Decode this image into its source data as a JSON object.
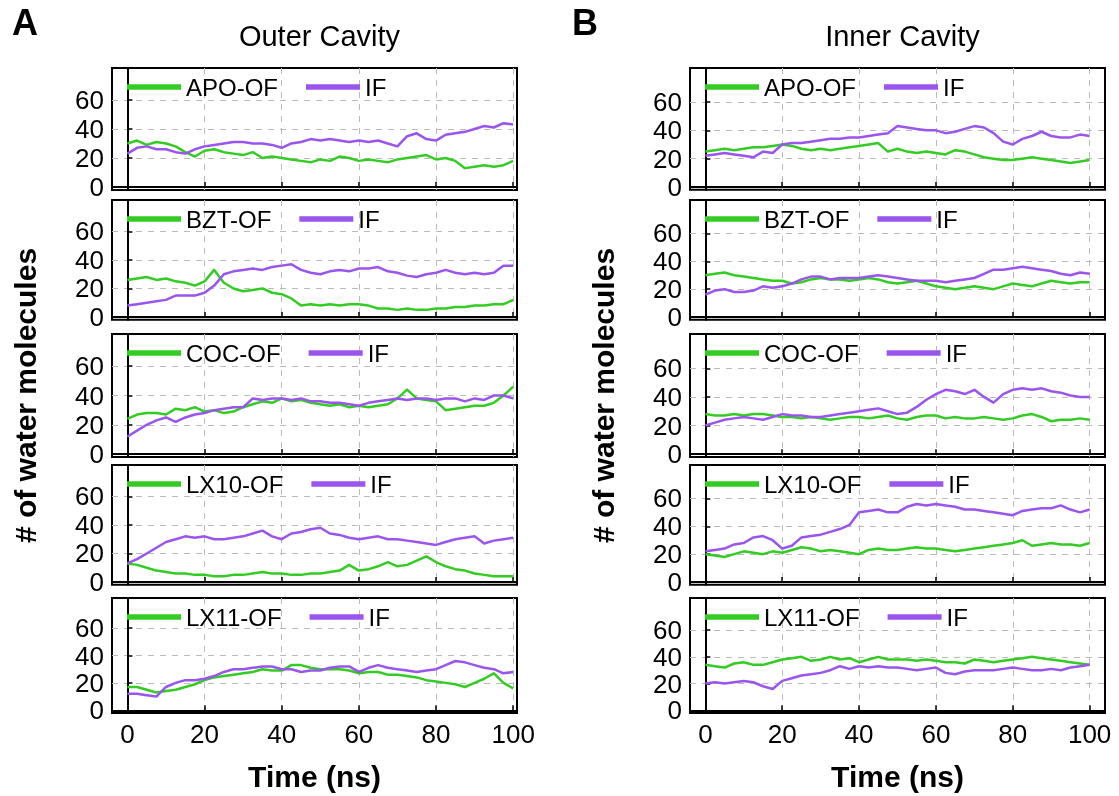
{
  "chart_data": [
    {
      "type": "line",
      "title": "Outer Cavity",
      "annotations": [
        "A"
      ],
      "xlim": [
        -4,
        101
      ],
      "ylim": [
        -2,
        82
      ],
      "xticks": [
        0,
        20,
        40,
        60,
        80,
        100
      ],
      "yticks": [
        0,
        20,
        40,
        60
      ],
      "tick_labels": "y",
      "grid": true,
      "legend": "top left",
      "marker": "none",
      "line_style": "solid",
      "x": [
        0,
        2.5,
        5,
        7.5,
        10,
        12.5,
        15,
        17.5,
        20,
        22.5,
        25,
        27.5,
        30,
        32.5,
        35,
        37.5,
        40,
        42.5,
        45,
        47.5,
        50,
        52.5,
        55,
        57.5,
        60,
        62.5,
        65,
        67.5,
        70,
        72.5,
        75,
        77.5,
        80,
        82.5,
        85,
        87.5,
        90,
        92.5,
        95,
        97.5,
        100
      ],
      "series": [
        {
          "name": "APO-OF",
          "color": "#33cc22",
          "values": [
            30,
            32,
            29,
            31,
            30,
            28,
            24,
            21,
            25,
            26,
            24,
            23,
            22,
            24,
            20,
            21,
            20,
            19,
            18,
            17,
            19,
            18,
            21,
            20,
            18,
            19,
            18,
            17,
            19,
            20,
            21,
            22,
            19,
            20,
            18,
            13,
            14,
            15,
            14,
            15,
            18
          ]
        },
        {
          "name": "IF",
          "color": "#9955ee",
          "values": [
            23,
            27,
            28,
            26,
            26,
            24,
            23,
            26,
            28,
            29,
            30,
            31,
            31,
            30,
            30,
            29,
            27,
            30,
            31,
            33,
            32,
            33,
            32,
            31,
            32,
            31,
            32,
            30,
            28,
            35,
            37,
            33,
            32,
            36,
            37,
            38,
            40,
            42,
            41,
            44,
            43
          ]
        }
      ]
    },
    {
      "type": "line",
      "xlim": [
        -4,
        101
      ],
      "ylim": [
        -2,
        82
      ],
      "xticks": [
        0,
        20,
        40,
        60,
        80,
        100
      ],
      "yticks": [
        0,
        20,
        40,
        60
      ],
      "tick_labels": "y",
      "grid": true,
      "legend": "top left",
      "marker": "none",
      "line_style": "solid",
      "x": [
        0,
        2.5,
        5,
        7.5,
        10,
        12.5,
        15,
        17.5,
        20,
        22.5,
        25,
        27.5,
        30,
        32.5,
        35,
        37.5,
        40,
        42.5,
        45,
        47.5,
        50,
        52.5,
        55,
        57.5,
        60,
        62.5,
        65,
        67.5,
        70,
        72.5,
        75,
        77.5,
        80,
        82.5,
        85,
        87.5,
        90,
        92.5,
        95,
        97.5,
        100
      ],
      "series": [
        {
          "name": "BZT-OF",
          "color": "#33cc22",
          "values": [
            26,
            27,
            28,
            26,
            27,
            25,
            24,
            22,
            25,
            33,
            24,
            20,
            18,
            19,
            20,
            17,
            16,
            13,
            8,
            9,
            8,
            9,
            8,
            9,
            9,
            8,
            6,
            6,
            5,
            6,
            5,
            5,
            6,
            6,
            7,
            7,
            8,
            8,
            9,
            9,
            12
          ]
        },
        {
          "name": "IF",
          "color": "#9955ee",
          "values": [
            8,
            9,
            10,
            11,
            12,
            15,
            15,
            15,
            17,
            22,
            30,
            32,
            33,
            34,
            33,
            35,
            36,
            37,
            33,
            31,
            30,
            32,
            33,
            32,
            34,
            34,
            35,
            32,
            31,
            29,
            28,
            30,
            31,
            33,
            31,
            30,
            31,
            30,
            31,
            36,
            36
          ]
        }
      ]
    },
    {
      "type": "line",
      "ylabel": "# of water molecules",
      "xlim": [
        -4,
        101
      ],
      "ylim": [
        -2,
        82
      ],
      "xticks": [
        0,
        20,
        40,
        60,
        80,
        100
      ],
      "yticks": [
        0,
        20,
        40,
        60
      ],
      "tick_labels": "y",
      "grid": true,
      "legend": "top left",
      "marker": "none",
      "line_style": "solid",
      "x": [
        0,
        2.5,
        5,
        7.5,
        10,
        12.5,
        15,
        17.5,
        20,
        22.5,
        25,
        27.5,
        30,
        32.5,
        35,
        37.5,
        40,
        42.5,
        45,
        47.5,
        50,
        52.5,
        55,
        57.5,
        60,
        62.5,
        65,
        67.5,
        70,
        72.5,
        75,
        77.5,
        80,
        82.5,
        85,
        87.5,
        90,
        92.5,
        95,
        97.5,
        100
      ],
      "series": [
        {
          "name": "COC-OF",
          "color": "#33cc22",
          "values": [
            24,
            27,
            28,
            28,
            27,
            31,
            30,
            32,
            29,
            30,
            28,
            29,
            32,
            34,
            36,
            35,
            38,
            36,
            37,
            35,
            34,
            33,
            34,
            32,
            33,
            32,
            33,
            34,
            38,
            44,
            38,
            37,
            36,
            30,
            31,
            32,
            33,
            33,
            35,
            40,
            46
          ]
        },
        {
          "name": "IF",
          "color": "#9955ee",
          "values": [
            12,
            16,
            20,
            23,
            25,
            22,
            25,
            27,
            28,
            30,
            31,
            32,
            32,
            38,
            37,
            38,
            38,
            37,
            38,
            36,
            36,
            35,
            35,
            34,
            33,
            35,
            36,
            37,
            38,
            37,
            38,
            38,
            37,
            38,
            38,
            36,
            38,
            37,
            40,
            40,
            38
          ]
        }
      ]
    },
    {
      "type": "line",
      "xlim": [
        -4,
        101
      ],
      "ylim": [
        -2,
        82
      ],
      "xticks": [
        0,
        20,
        40,
        60,
        80,
        100
      ],
      "yticks": [
        0,
        20,
        40,
        60
      ],
      "tick_labels": "y",
      "grid": true,
      "legend": "top left",
      "marker": "none",
      "line_style": "solid",
      "x": [
        0,
        2.5,
        5,
        7.5,
        10,
        12.5,
        15,
        17.5,
        20,
        22.5,
        25,
        27.5,
        30,
        32.5,
        35,
        37.5,
        40,
        42.5,
        45,
        47.5,
        50,
        52.5,
        55,
        57.5,
        60,
        62.5,
        65,
        67.5,
        70,
        72.5,
        75,
        77.5,
        80,
        82.5,
        85,
        87.5,
        90,
        92.5,
        95,
        97.5,
        100
      ],
      "series": [
        {
          "name": "LX10-OF",
          "color": "#33cc22",
          "values": [
            13,
            12,
            10,
            8,
            7,
            6,
            6,
            5,
            5,
            4,
            4,
            5,
            5,
            6,
            7,
            6,
            6,
            5,
            5,
            6,
            6,
            7,
            8,
            12,
            8,
            9,
            11,
            14,
            11,
            12,
            15,
            18,
            14,
            11,
            9,
            8,
            6,
            5,
            4,
            4,
            4
          ]
        },
        {
          "name": "IF",
          "color": "#9955ee",
          "values": [
            13,
            16,
            20,
            24,
            28,
            30,
            32,
            31,
            32,
            30,
            30,
            31,
            32,
            34,
            36,
            32,
            30,
            34,
            35,
            37,
            38,
            34,
            33,
            31,
            30,
            31,
            32,
            30,
            30,
            29,
            28,
            27,
            26,
            28,
            30,
            31,
            32,
            27,
            29,
            30,
            31
          ]
        }
      ]
    },
    {
      "type": "line",
      "xlabel": "Time (ns)",
      "xlim": [
        -4,
        101
      ],
      "ylim": [
        -2,
        82
      ],
      "xticks": [
        0,
        20,
        40,
        60,
        80,
        100
      ],
      "yticks": [
        0,
        20,
        40,
        60
      ],
      "grid": true,
      "legend": "top left",
      "marker": "none",
      "line_style": "solid",
      "x": [
        0,
        2.5,
        5,
        7.5,
        10,
        12.5,
        15,
        17.5,
        20,
        22.5,
        25,
        27.5,
        30,
        32.5,
        35,
        37.5,
        40,
        42.5,
        45,
        47.5,
        50,
        52.5,
        55,
        57.5,
        60,
        62.5,
        65,
        67.5,
        70,
        72.5,
        75,
        77.5,
        80,
        82.5,
        85,
        87.5,
        90,
        92.5,
        95,
        97.5,
        100
      ],
      "series": [
        {
          "name": "LX11-OF",
          "color": "#33cc22",
          "values": [
            17,
            17,
            15,
            13,
            14,
            15,
            17,
            19,
            22,
            24,
            25,
            26,
            27,
            28,
            30,
            29,
            29,
            33,
            33,
            31,
            30,
            30,
            30,
            29,
            27,
            28,
            28,
            26,
            26,
            25,
            24,
            22,
            21,
            20,
            19,
            17,
            20,
            23,
            27,
            20,
            16
          ]
        },
        {
          "name": "IF",
          "color": "#9955ee",
          "values": [
            12,
            12,
            11,
            10,
            17,
            20,
            22,
            22,
            23,
            25,
            28,
            30,
            30,
            31,
            32,
            32,
            30,
            30,
            28,
            29,
            29,
            31,
            32,
            32,
            28,
            31,
            33,
            31,
            30,
            29,
            28,
            29,
            30,
            33,
            36,
            35,
            33,
            31,
            30,
            27,
            28
          ]
        }
      ]
    },
    {
      "type": "line",
      "title": "Inner Cavity",
      "annotations": [
        "B"
      ],
      "xlim": [
        -4,
        104
      ],
      "ylim": [
        -2,
        84
      ],
      "xticks": [
        0,
        20,
        40,
        60,
        80,
        100
      ],
      "yticks": [
        0,
        20,
        40,
        60
      ],
      "tick_labels": "y",
      "grid": true,
      "legend": "top left",
      "marker": "none",
      "line_style": "solid",
      "x": [
        0,
        2.5,
        5,
        7.5,
        10,
        12.5,
        15,
        17.5,
        20,
        22.5,
        25,
        27.5,
        30,
        32.5,
        35,
        37.5,
        40,
        42.5,
        45,
        47.5,
        50,
        52.5,
        55,
        57.5,
        60,
        62.5,
        65,
        67.5,
        70,
        72.5,
        75,
        77.5,
        80,
        82.5,
        85,
        87.5,
        90,
        92.5,
        95,
        97.5,
        100
      ],
      "series": [
        {
          "name": "APO-OF",
          "color": "#33cc22",
          "values": [
            25,
            26,
            27,
            26,
            27,
            28,
            28,
            29,
            30,
            29,
            27,
            26,
            27,
            26,
            27,
            28,
            29,
            30,
            31,
            25,
            27,
            25,
            24,
            25,
            24,
            23,
            26,
            25,
            23,
            21,
            20,
            19,
            19,
            20,
            21,
            20,
            19,
            18,
            17,
            18,
            19
          ]
        },
        {
          "name": "IF",
          "color": "#9955ee",
          "values": [
            22,
            23,
            24,
            23,
            22,
            21,
            25,
            24,
            30,
            31,
            31,
            32,
            33,
            34,
            34,
            35,
            35,
            36,
            37,
            38,
            43,
            42,
            41,
            40,
            40,
            38,
            39,
            41,
            43,
            42,
            38,
            32,
            30,
            34,
            36,
            39,
            36,
            35,
            35,
            37,
            36
          ]
        }
      ]
    },
    {
      "type": "line",
      "xlim": [
        -4,
        104
      ],
      "ylim": [
        -2,
        84
      ],
      "xticks": [
        0,
        20,
        40,
        60,
        80,
        100
      ],
      "yticks": [
        0,
        20,
        40,
        60
      ],
      "tick_labels": "y",
      "grid": true,
      "legend": "top left",
      "marker": "none",
      "line_style": "solid",
      "x": [
        0,
        2.5,
        5,
        7.5,
        10,
        12.5,
        15,
        17.5,
        20,
        22.5,
        25,
        27.5,
        30,
        32.5,
        35,
        37.5,
        40,
        42.5,
        45,
        47.5,
        50,
        52.5,
        55,
        57.5,
        60,
        62.5,
        65,
        67.5,
        70,
        72.5,
        75,
        77.5,
        80,
        82.5,
        85,
        87.5,
        90,
        92.5,
        95,
        97.5,
        100
      ],
      "series": [
        {
          "name": "BZT-OF",
          "color": "#33cc22",
          "values": [
            30,
            31,
            32,
            30,
            29,
            28,
            27,
            26,
            26,
            24,
            25,
            27,
            28,
            27,
            27,
            26,
            27,
            28,
            27,
            25,
            24,
            25,
            26,
            24,
            22,
            21,
            20,
            21,
            22,
            21,
            20,
            22,
            24,
            23,
            22,
            24,
            26,
            25,
            24,
            25,
            25
          ]
        },
        {
          "name": "IF",
          "color": "#9955ee",
          "values": [
            16,
            19,
            20,
            18,
            18,
            19,
            22,
            21,
            22,
            24,
            27,
            29,
            29,
            27,
            28,
            28,
            28,
            29,
            30,
            29,
            28,
            27,
            26,
            26,
            26,
            25,
            26,
            27,
            28,
            31,
            34,
            34,
            35,
            36,
            35,
            34,
            33,
            31,
            30,
            32,
            31
          ]
        }
      ]
    },
    {
      "type": "line",
      "ylabel": "# of water molecules",
      "xlim": [
        -4,
        104
      ],
      "ylim": [
        -2,
        84
      ],
      "xticks": [
        0,
        20,
        40,
        60,
        80,
        100
      ],
      "yticks": [
        0,
        20,
        40,
        60
      ],
      "tick_labels": "y",
      "grid": true,
      "legend": "top left",
      "marker": "none",
      "line_style": "solid",
      "x": [
        0,
        2.5,
        5,
        7.5,
        10,
        12.5,
        15,
        17.5,
        20,
        22.5,
        25,
        27.5,
        30,
        32.5,
        35,
        37.5,
        40,
        42.5,
        45,
        47.5,
        50,
        52.5,
        55,
        57.5,
        60,
        62.5,
        65,
        67.5,
        70,
        72.5,
        75,
        77.5,
        80,
        82.5,
        85,
        87.5,
        90,
        92.5,
        95,
        97.5,
        100
      ],
      "series": [
        {
          "name": "COC-OF",
          "color": "#33cc22",
          "values": [
            28,
            27,
            27,
            28,
            27,
            28,
            28,
            27,
            26,
            26,
            25,
            26,
            25,
            24,
            25,
            26,
            26,
            25,
            26,
            27,
            25,
            24,
            26,
            27,
            27,
            25,
            26,
            25,
            25,
            26,
            25,
            24,
            25,
            27,
            28,
            26,
            23,
            24,
            24,
            25,
            24
          ]
        },
        {
          "name": "IF",
          "color": "#9955ee",
          "values": [
            20,
            22,
            24,
            25,
            26,
            25,
            24,
            26,
            28,
            27,
            27,
            26,
            26,
            27,
            28,
            29,
            30,
            31,
            32,
            30,
            28,
            29,
            33,
            38,
            42,
            45,
            44,
            42,
            45,
            40,
            36,
            42,
            45,
            46,
            45,
            46,
            44,
            43,
            41,
            40,
            40
          ]
        }
      ]
    },
    {
      "type": "line",
      "xlim": [
        -4,
        104
      ],
      "ylim": [
        -2,
        84
      ],
      "xticks": [
        0,
        20,
        40,
        60,
        80,
        100
      ],
      "yticks": [
        0,
        20,
        40,
        60
      ],
      "tick_labels": "y",
      "grid": true,
      "legend": "top left",
      "marker": "none",
      "line_style": "solid",
      "x": [
        0,
        2.5,
        5,
        7.5,
        10,
        12.5,
        15,
        17.5,
        20,
        22.5,
        25,
        27.5,
        30,
        32.5,
        35,
        37.5,
        40,
        42.5,
        45,
        47.5,
        50,
        52.5,
        55,
        57.5,
        60,
        62.5,
        65,
        67.5,
        70,
        72.5,
        75,
        77.5,
        80,
        82.5,
        85,
        87.5,
        90,
        92.5,
        95,
        97.5,
        100
      ],
      "series": [
        {
          "name": "LX10-OF",
          "color": "#33cc22",
          "values": [
            20,
            19,
            18,
            20,
            22,
            21,
            20,
            22,
            21,
            23,
            25,
            24,
            22,
            23,
            22,
            21,
            20,
            23,
            24,
            23,
            23,
            24,
            25,
            24,
            24,
            23,
            22,
            23,
            24,
            25,
            26,
            27,
            28,
            30,
            26,
            27,
            28,
            27,
            27,
            26,
            28
          ]
        },
        {
          "name": "IF",
          "color": "#9955ee",
          "values": [
            22,
            23,
            24,
            27,
            28,
            32,
            33,
            30,
            24,
            26,
            32,
            33,
            34,
            36,
            38,
            41,
            50,
            51,
            52,
            50,
            50,
            54,
            56,
            55,
            56,
            55,
            54,
            52,
            52,
            51,
            50,
            49,
            48,
            51,
            52,
            53,
            53,
            55,
            52,
            50,
            52
          ]
        }
      ]
    },
    {
      "type": "line",
      "xlabel": "Time (ns)",
      "xlim": [
        -4,
        104
      ],
      "ylim": [
        -2,
        84
      ],
      "xticks": [
        0,
        20,
        40,
        60,
        80,
        100
      ],
      "yticks": [
        0,
        20,
        40,
        60
      ],
      "grid": true,
      "legend": "top left",
      "marker": "none",
      "line_style": "solid",
      "x": [
        0,
        2.5,
        5,
        7.5,
        10,
        12.5,
        15,
        17.5,
        20,
        22.5,
        25,
        27.5,
        30,
        32.5,
        35,
        37.5,
        40,
        42.5,
        45,
        47.5,
        50,
        52.5,
        55,
        57.5,
        60,
        62.5,
        65,
        67.5,
        70,
        72.5,
        75,
        77.5,
        80,
        82.5,
        85,
        87.5,
        90,
        92.5,
        95,
        97.5,
        100
      ],
      "series": [
        {
          "name": "LX11-OF",
          "color": "#33cc22",
          "values": [
            34,
            33,
            32,
            35,
            36,
            34,
            34,
            36,
            38,
            39,
            40,
            37,
            38,
            40,
            38,
            39,
            36,
            38,
            40,
            38,
            38,
            38,
            37,
            38,
            37,
            36,
            36,
            35,
            38,
            37,
            36,
            37,
            38,
            39,
            40,
            39,
            38,
            37,
            36,
            35,
            34
          ]
        },
        {
          "name": "IF",
          "color": "#9955ee",
          "values": [
            20,
            21,
            20,
            21,
            22,
            21,
            18,
            16,
            22,
            24,
            26,
            27,
            28,
            30,
            33,
            31,
            33,
            32,
            33,
            32,
            32,
            31,
            30,
            31,
            32,
            28,
            27,
            29,
            30,
            30,
            30,
            31,
            32,
            31,
            30,
            30,
            31,
            30,
            32,
            33,
            34
          ]
        }
      ]
    }
  ]
}
